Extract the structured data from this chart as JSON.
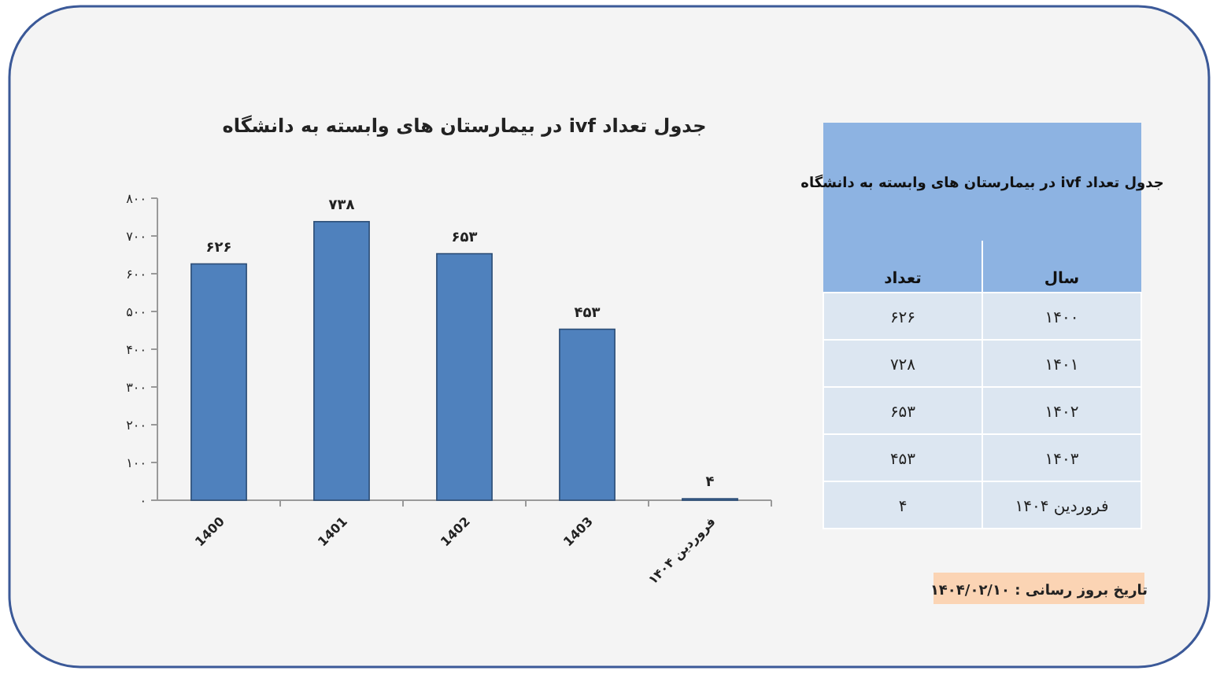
{
  "chart_data": {
    "type": "bar",
    "title": "جدول تعداد ivf در بیمارستان های وابسته به دانشگاه",
    "categories": [
      "1400",
      "1401",
      "1402",
      "1403",
      "فروردین ۱۴۰۴"
    ],
    "values": [
      626,
      738,
      653,
      453,
      4
    ],
    "color": "#4f81bd",
    "value_labels": [
      "۶۲۶",
      "۷۳۸",
      "۶۵۳",
      "۴۵۳",
      "۴"
    ],
    "ylim": [
      0,
      800
    ],
    "yticks": [
      {
        "value": 0,
        "label": "۰"
      },
      {
        "value": 100,
        "label": "۱۰۰"
      },
      {
        "value": 200,
        "label": "۲۰۰"
      },
      {
        "value": 300,
        "label": "۳۰۰"
      },
      {
        "value": 400,
        "label": "۴۰۰"
      },
      {
        "value": 500,
        "label": "۵۰۰"
      },
      {
        "value": 600,
        "label": "۶۰۰"
      },
      {
        "value": 700,
        "label": "۷۰۰"
      },
      {
        "value": 800,
        "label": "۸۰۰"
      }
    ],
    "annotations": [
      "جدول تعداد ivf  در بیمارستان های وابسته به دانشگاه",
      "سال",
      "تعداد",
      "۱۴۰۰",
      "۶۲۶",
      "۱۴۰۱",
      "۷۲۸",
      "۱۴۰۲",
      "۶۵۳",
      "۱۴۰۳",
      "۴۵۳",
      "فروردین ۱۴۰۴",
      "۴",
      "تاریخ بروز رسانی : ۱۴۰۴/۰۲/۱۰"
    ]
  }
}
